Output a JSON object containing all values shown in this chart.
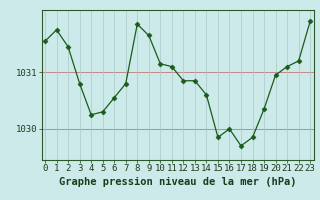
{
  "x": [
    0,
    1,
    2,
    3,
    4,
    5,
    6,
    7,
    8,
    9,
    10,
    11,
    12,
    13,
    14,
    15,
    16,
    17,
    18,
    19,
    20,
    21,
    22,
    23
  ],
  "y": [
    1031.55,
    1031.75,
    1031.45,
    1030.8,
    1030.25,
    1030.3,
    1030.55,
    1030.8,
    1031.85,
    1031.65,
    1031.15,
    1031.1,
    1030.85,
    1030.85,
    1030.6,
    1029.85,
    1030.0,
    1029.7,
    1029.85,
    1030.35,
    1030.95,
    1031.1,
    1031.2,
    1031.9
  ],
  "line_color": "#1a5c1a",
  "marker": "D",
  "marker_size": 2.5,
  "bg_color": "#cdeaea",
  "grid_color_h": "#c08888",
  "grid_color_v": "#aac8c8",
  "xlabel": "Graphe pression niveau de la mer (hPa)",
  "xlabel_color": "#1a3c1a",
  "xlabel_fontsize": 7.5,
  "tick_label_color": "#1a3c1a",
  "tick_fontsize": 6.5,
  "ytick_labels": [
    "1030",
    "1031"
  ],
  "ytick_values": [
    1030,
    1031
  ],
  "ylim": [
    1029.45,
    1032.1
  ],
  "xlim": [
    -0.3,
    23.3
  ],
  "xtick_values": [
    0,
    1,
    2,
    3,
    4,
    5,
    6,
    7,
    8,
    9,
    10,
    11,
    12,
    13,
    14,
    15,
    16,
    17,
    18,
    19,
    20,
    21,
    22,
    23
  ]
}
